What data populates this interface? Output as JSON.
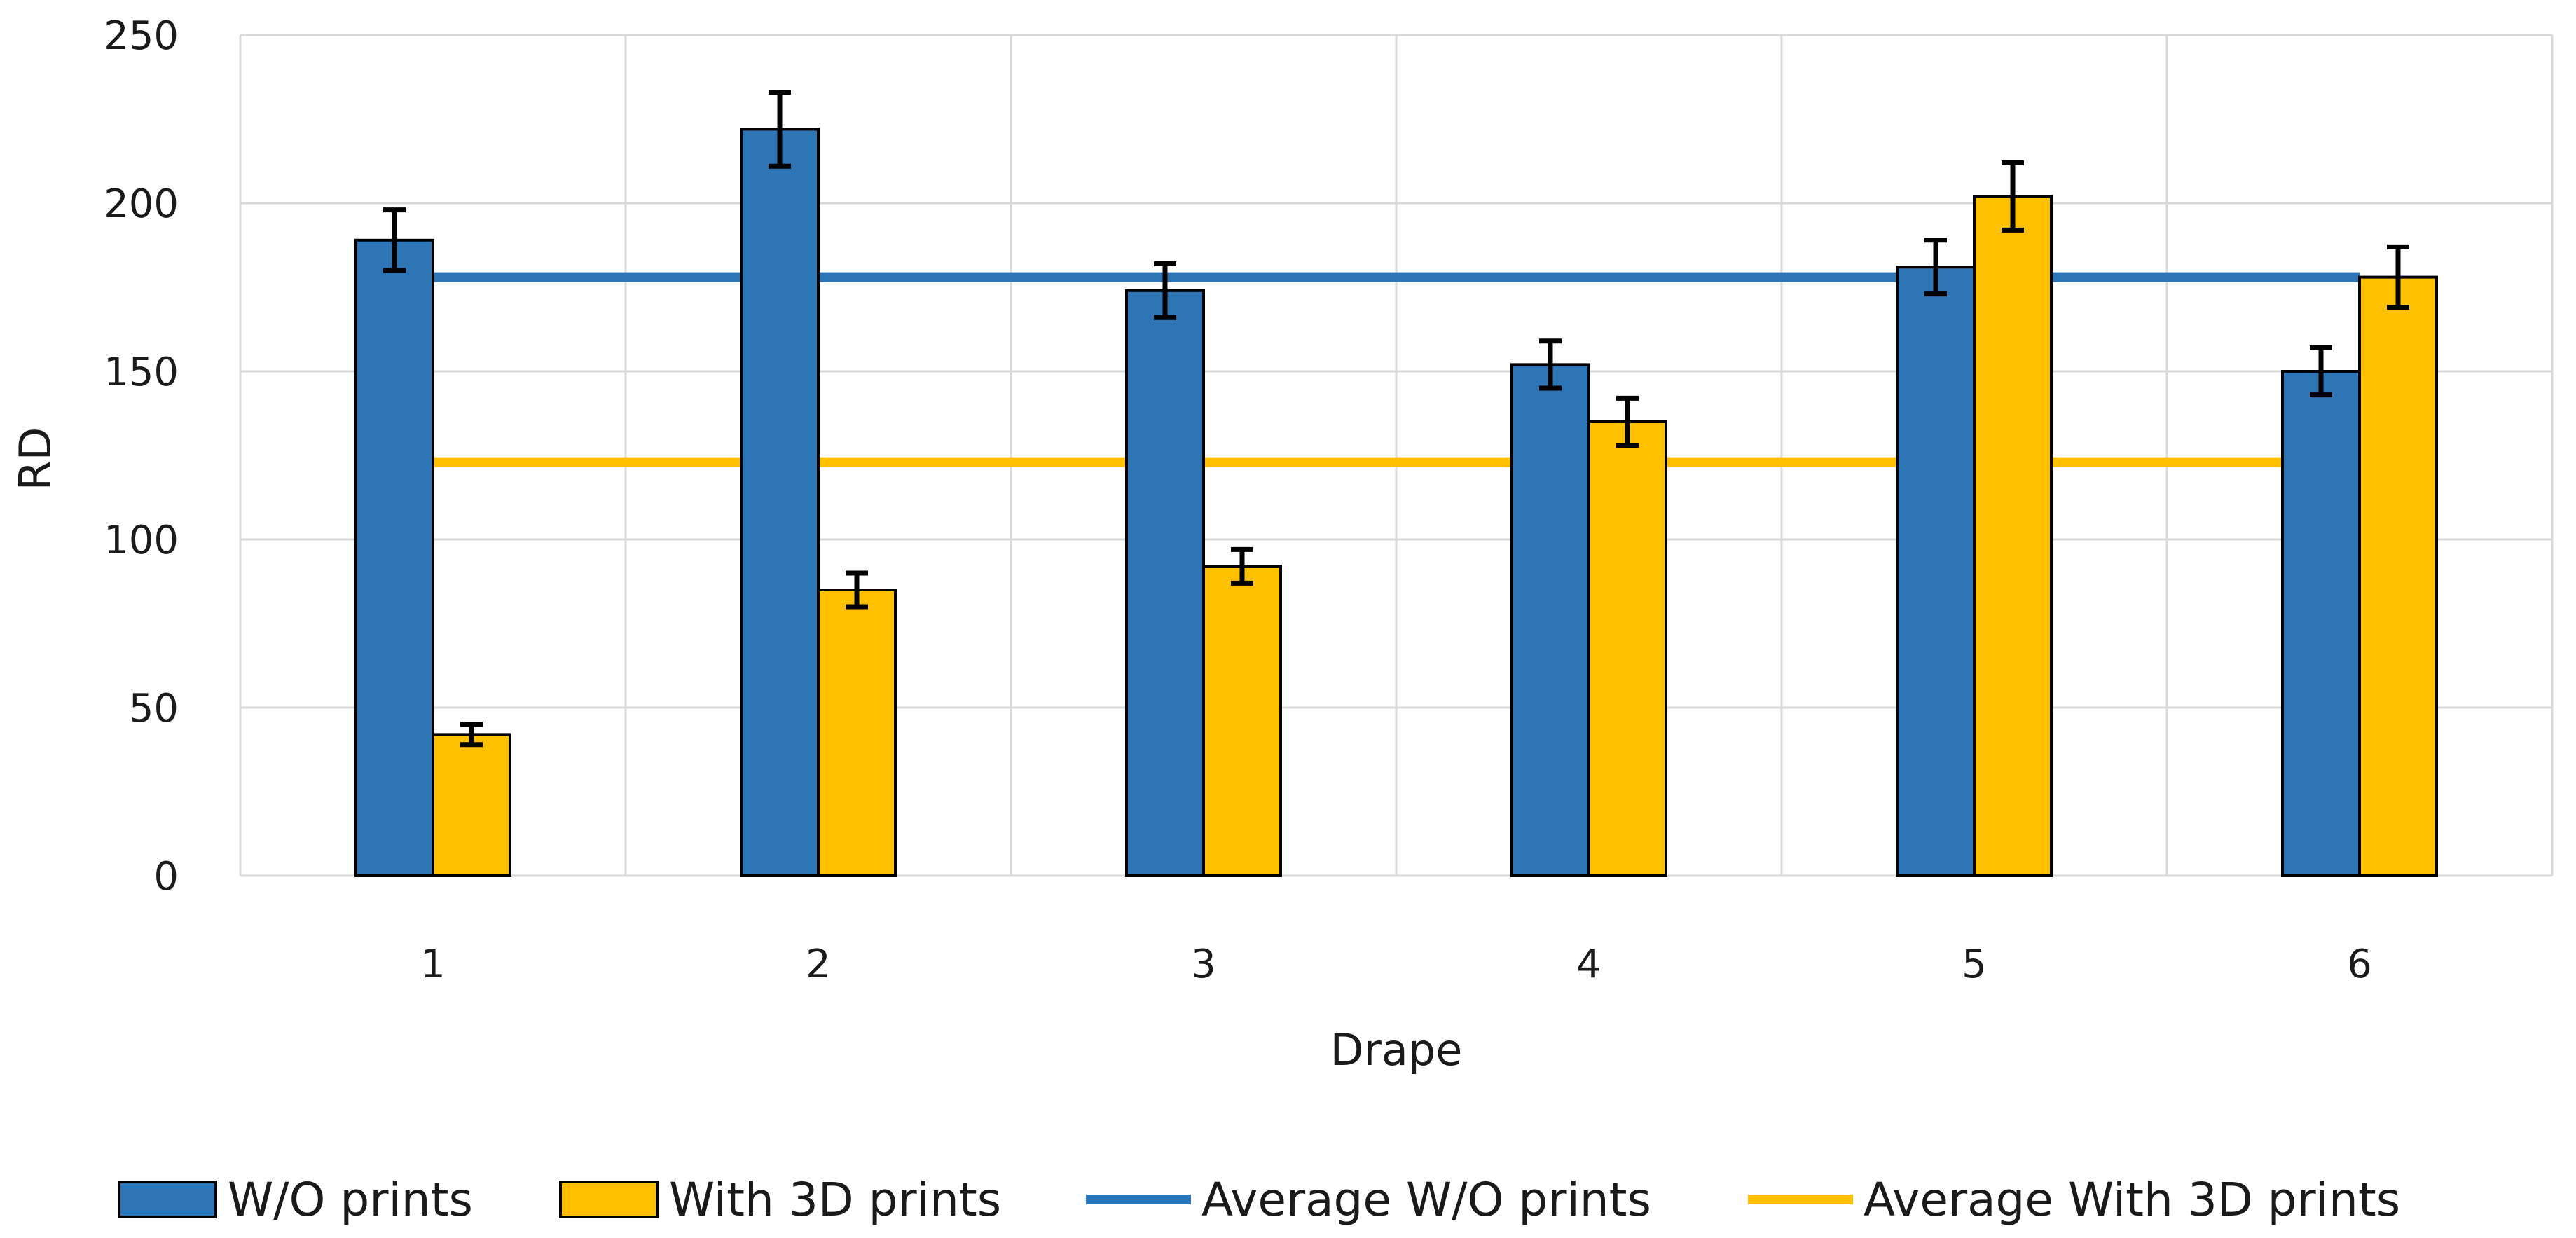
{
  "chart_data": {
    "type": "bar",
    "title": "",
    "xlabel": "Drape",
    "ylabel": "RD",
    "categories": [
      "1",
      "2",
      "3",
      "4",
      "5",
      "6"
    ],
    "ylim": [
      0,
      250
    ],
    "yticks": [
      0,
      50,
      100,
      150,
      200,
      250
    ],
    "grid": true,
    "legend_position": "bottom",
    "series": [
      {
        "name": "W/O prints",
        "kind": "bar",
        "color": "#2E75B6",
        "values": [
          189,
          222,
          174,
          152,
          181,
          150
        ],
        "errors": [
          9,
          11,
          8,
          7,
          8,
          7
        ]
      },
      {
        "name": "With 3D prints",
        "kind": "bar",
        "color": "#FFC000",
        "values": [
          42,
          85,
          92,
          135,
          202,
          178
        ],
        "errors": [
          3,
          5,
          5,
          7,
          10,
          9
        ]
      },
      {
        "name": "Average W/O prints",
        "kind": "line",
        "color": "#2E75B6",
        "values": [
          178,
          178,
          178,
          178,
          178,
          178
        ]
      },
      {
        "name": "Average With 3D prints",
        "kind": "line",
        "color": "#FFC000",
        "values": [
          123,
          123,
          123,
          123,
          123,
          123
        ]
      }
    ]
  }
}
